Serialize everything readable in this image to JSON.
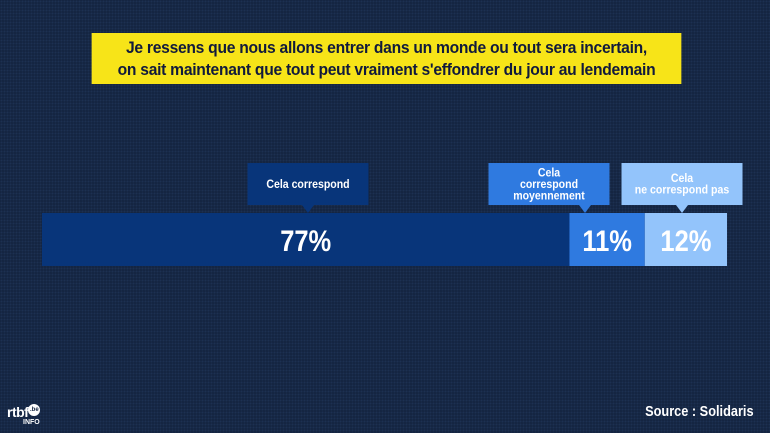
{
  "title": {
    "line1": "Je ressens que nous allons entrer dans un monde ou tout sera incertain,",
    "line2": "on sait maintenant que tout peut vraiment s'effondrer du jour au lendemain"
  },
  "chart_data": {
    "type": "bar",
    "orientation": "horizontal",
    "stacked": true,
    "categories": [
      "Cela correspond",
      "Cela correspond moyennement",
      "Cela ne correspond pas"
    ],
    "values": [
      77,
      11,
      12
    ],
    "data_labels": [
      "77%",
      "11%",
      "12%"
    ],
    "callouts": [
      [
        "Cela correspond"
      ],
      [
        "Cela",
        "correspond",
        "moyennement"
      ],
      [
        "Cela",
        "ne correspond pas"
      ]
    ],
    "colors": [
      "#08357a",
      "#2f7ae0",
      "#93c4fb"
    ],
    "xlim": [
      0,
      100
    ]
  },
  "source": "Source : Solidaris",
  "logo": {
    "name": "rtbf",
    "badge": ".be",
    "sub": "INFO"
  }
}
